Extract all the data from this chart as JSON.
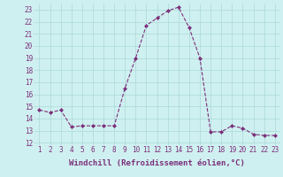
{
  "x": [
    1,
    2,
    3,
    4,
    5,
    6,
    7,
    8,
    9,
    10,
    11,
    12,
    13,
    14,
    15,
    16,
    17,
    18,
    19,
    20,
    21,
    22,
    23
  ],
  "y": [
    14.7,
    14.5,
    14.7,
    13.3,
    13.4,
    13.4,
    13.4,
    13.4,
    16.5,
    19.0,
    21.7,
    22.3,
    22.9,
    23.2,
    21.5,
    19.0,
    12.9,
    12.9,
    13.4,
    13.2,
    12.7,
    12.6,
    12.6
  ],
  "line_color": "#7b2f7b",
  "marker": "D",
  "marker_size": 2.0,
  "background_color": "#cff0f0",
  "grid_color": "#aad8d8",
  "xlabel": "Windchill (Refroidissement éolien,°C)",
  "xlabel_fontsize": 6.5,
  "xlabel_color": "#7b2f7b",
  "tick_label_color": "#7b2f7b",
  "ylim": [
    11.8,
    23.5
  ],
  "xlim": [
    0.5,
    23.5
  ],
  "yticks": [
    12,
    13,
    14,
    15,
    16,
    17,
    18,
    19,
    20,
    21,
    22,
    23
  ],
  "xticks": [
    1,
    2,
    3,
    4,
    5,
    6,
    7,
    8,
    9,
    10,
    11,
    12,
    13,
    14,
    15,
    16,
    17,
    18,
    19,
    20,
    21,
    22,
    23
  ],
  "tick_fontsize": 5.5,
  "linewidth": 0.8
}
